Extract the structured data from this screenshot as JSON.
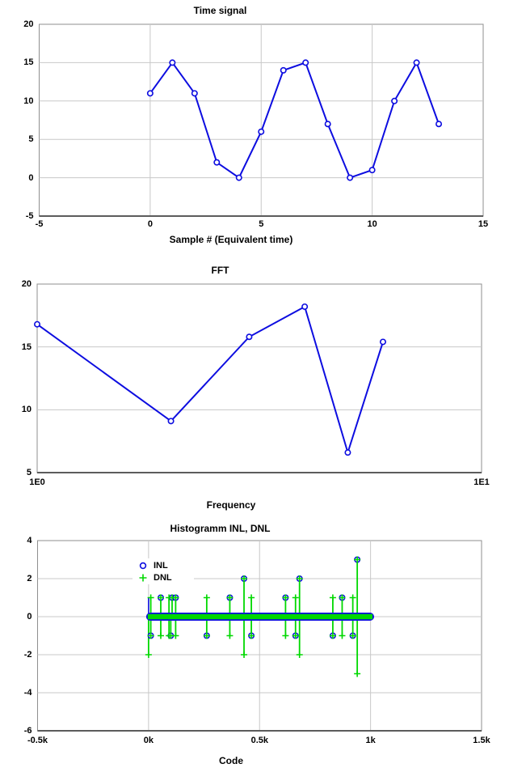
{
  "panel": {
    "background": "#ffffff"
  },
  "colors": {
    "series_blue": "#0d0de0",
    "series_green": "#00d800",
    "grid": "#c8c8c8",
    "plot_border": "#8f8f8f",
    "axis_dark": "#5c5c5c",
    "text": "#000000",
    "plot_bg": "#ffffff"
  },
  "chart_data": [
    {
      "id": "time-signal",
      "type": "line",
      "title": "Time signal",
      "xlabel": "Sample # (Equivalent time)",
      "x": [
        0,
        1,
        2,
        3,
        4,
        5,
        6,
        7,
        8,
        9,
        10,
        11,
        12,
        13
      ],
      "y": [
        11,
        15,
        11,
        2,
        0,
        6,
        14,
        15,
        7,
        0,
        1,
        10,
        15,
        7
      ],
      "xlim": [
        -5,
        15
      ],
      "ylim": [
        -5,
        20
      ],
      "xscale": "linear",
      "xticks": {
        "values": [
          -5,
          0,
          5,
          10,
          15
        ],
        "labels": [
          "-5",
          "0",
          "5",
          "10",
          "15"
        ]
      },
      "yticks": {
        "values": [
          20,
          15,
          10,
          5,
          0,
          -5
        ],
        "labels": [
          "20",
          "15",
          "10",
          "5",
          "0",
          "-5"
        ]
      },
      "grid": true,
      "marker": "circle"
    },
    {
      "id": "fft",
      "type": "line",
      "title": "FFT",
      "xlabel": "Frequency",
      "x": [
        1,
        2,
        3,
        4,
        5,
        6
      ],
      "y": [
        16.8,
        9.1,
        15.8,
        18.2,
        6.6,
        15.4
      ],
      "xlim": [
        1,
        10
      ],
      "ylim": [
        5,
        20
      ],
      "xscale": "log",
      "xticks": {
        "values": [
          1,
          10
        ],
        "labels": [
          "1E0",
          "1E1"
        ]
      },
      "yticks": {
        "values": [
          20,
          15,
          10,
          5
        ],
        "labels": [
          "20",
          "15",
          "10",
          "5"
        ]
      },
      "grid": true,
      "marker": "circle"
    },
    {
      "id": "histogram-inl-dnl",
      "type": "stem",
      "title": "Histogramm INL, DNL",
      "xlabel": "Code",
      "xlim": [
        -500,
        1500
      ],
      "ylim": [
        -6,
        4
      ],
      "xscale": "linear",
      "xticks": {
        "values": [
          -500,
          0,
          500,
          1000,
          1500
        ],
        "labels": [
          "-0.5k",
          "0k",
          "0.5k",
          "1k",
          "1.5k"
        ]
      },
      "yticks": {
        "values": [
          4,
          2,
          0,
          -2,
          -4,
          -6
        ],
        "labels": [
          "4",
          "2",
          "0",
          "-2",
          "-4",
          "-6"
        ]
      },
      "grid": true,
      "legend": [
        {
          "label": "INL",
          "marker": "circle",
          "color": "#0d0de0"
        },
        {
          "label": "DNL",
          "marker": "plus",
          "color": "#00d800"
        }
      ],
      "zero_band": {
        "from_code": 0,
        "to_code": 1005,
        "value": 0
      },
      "clusters": [
        {
          "code": 0,
          "inl": null,
          "stem_top": 0,
          "stem_bot": -2,
          "blue_top": 1
        },
        {
          "code": 10,
          "inl": -1,
          "stem_top": 1,
          "stem_bot": -1
        },
        {
          "code": 55,
          "inl": 1,
          "stem_top": 1,
          "stem_bot": -1
        },
        {
          "code": 92,
          "inl": null,
          "stem_top": 1,
          "stem_bot": -1
        },
        {
          "code": 100,
          "inl": -1,
          "stem_top": 0,
          "stem_bot": -1
        },
        {
          "code": 106,
          "inl": 1,
          "stem_top": 1,
          "stem_bot": 0
        },
        {
          "code": 122,
          "inl": 1,
          "stem_top": 1,
          "stem_bot": -1
        },
        {
          "code": 262,
          "inl": -1,
          "stem_top": 1,
          "stem_bot": -1
        },
        {
          "code": 366,
          "inl": 1,
          "stem_top": 1,
          "stem_bot": -1
        },
        {
          "code": 430,
          "inl": 2,
          "stem_top": 2,
          "stem_bot": -2
        },
        {
          "code": 463,
          "inl": -1,
          "stem_top": 1,
          "stem_bot": -1
        },
        {
          "code": 617,
          "inl": 1,
          "stem_top": 1,
          "stem_bot": -1
        },
        {
          "code": 662,
          "inl": -1,
          "stem_top": 1,
          "stem_bot": -1
        },
        {
          "code": 680,
          "inl": 2,
          "stem_top": 2,
          "stem_bot": -2
        },
        {
          "code": 830,
          "inl": -1,
          "stem_top": 1,
          "stem_bot": -1
        },
        {
          "code": 872,
          "inl": 1,
          "stem_top": 1,
          "stem_bot": -1
        },
        {
          "code": 920,
          "inl": -1,
          "stem_top": 1,
          "stem_bot": -1
        },
        {
          "code": 940,
          "inl": 3,
          "stem_top": 3,
          "stem_bot": -3
        }
      ]
    }
  ]
}
